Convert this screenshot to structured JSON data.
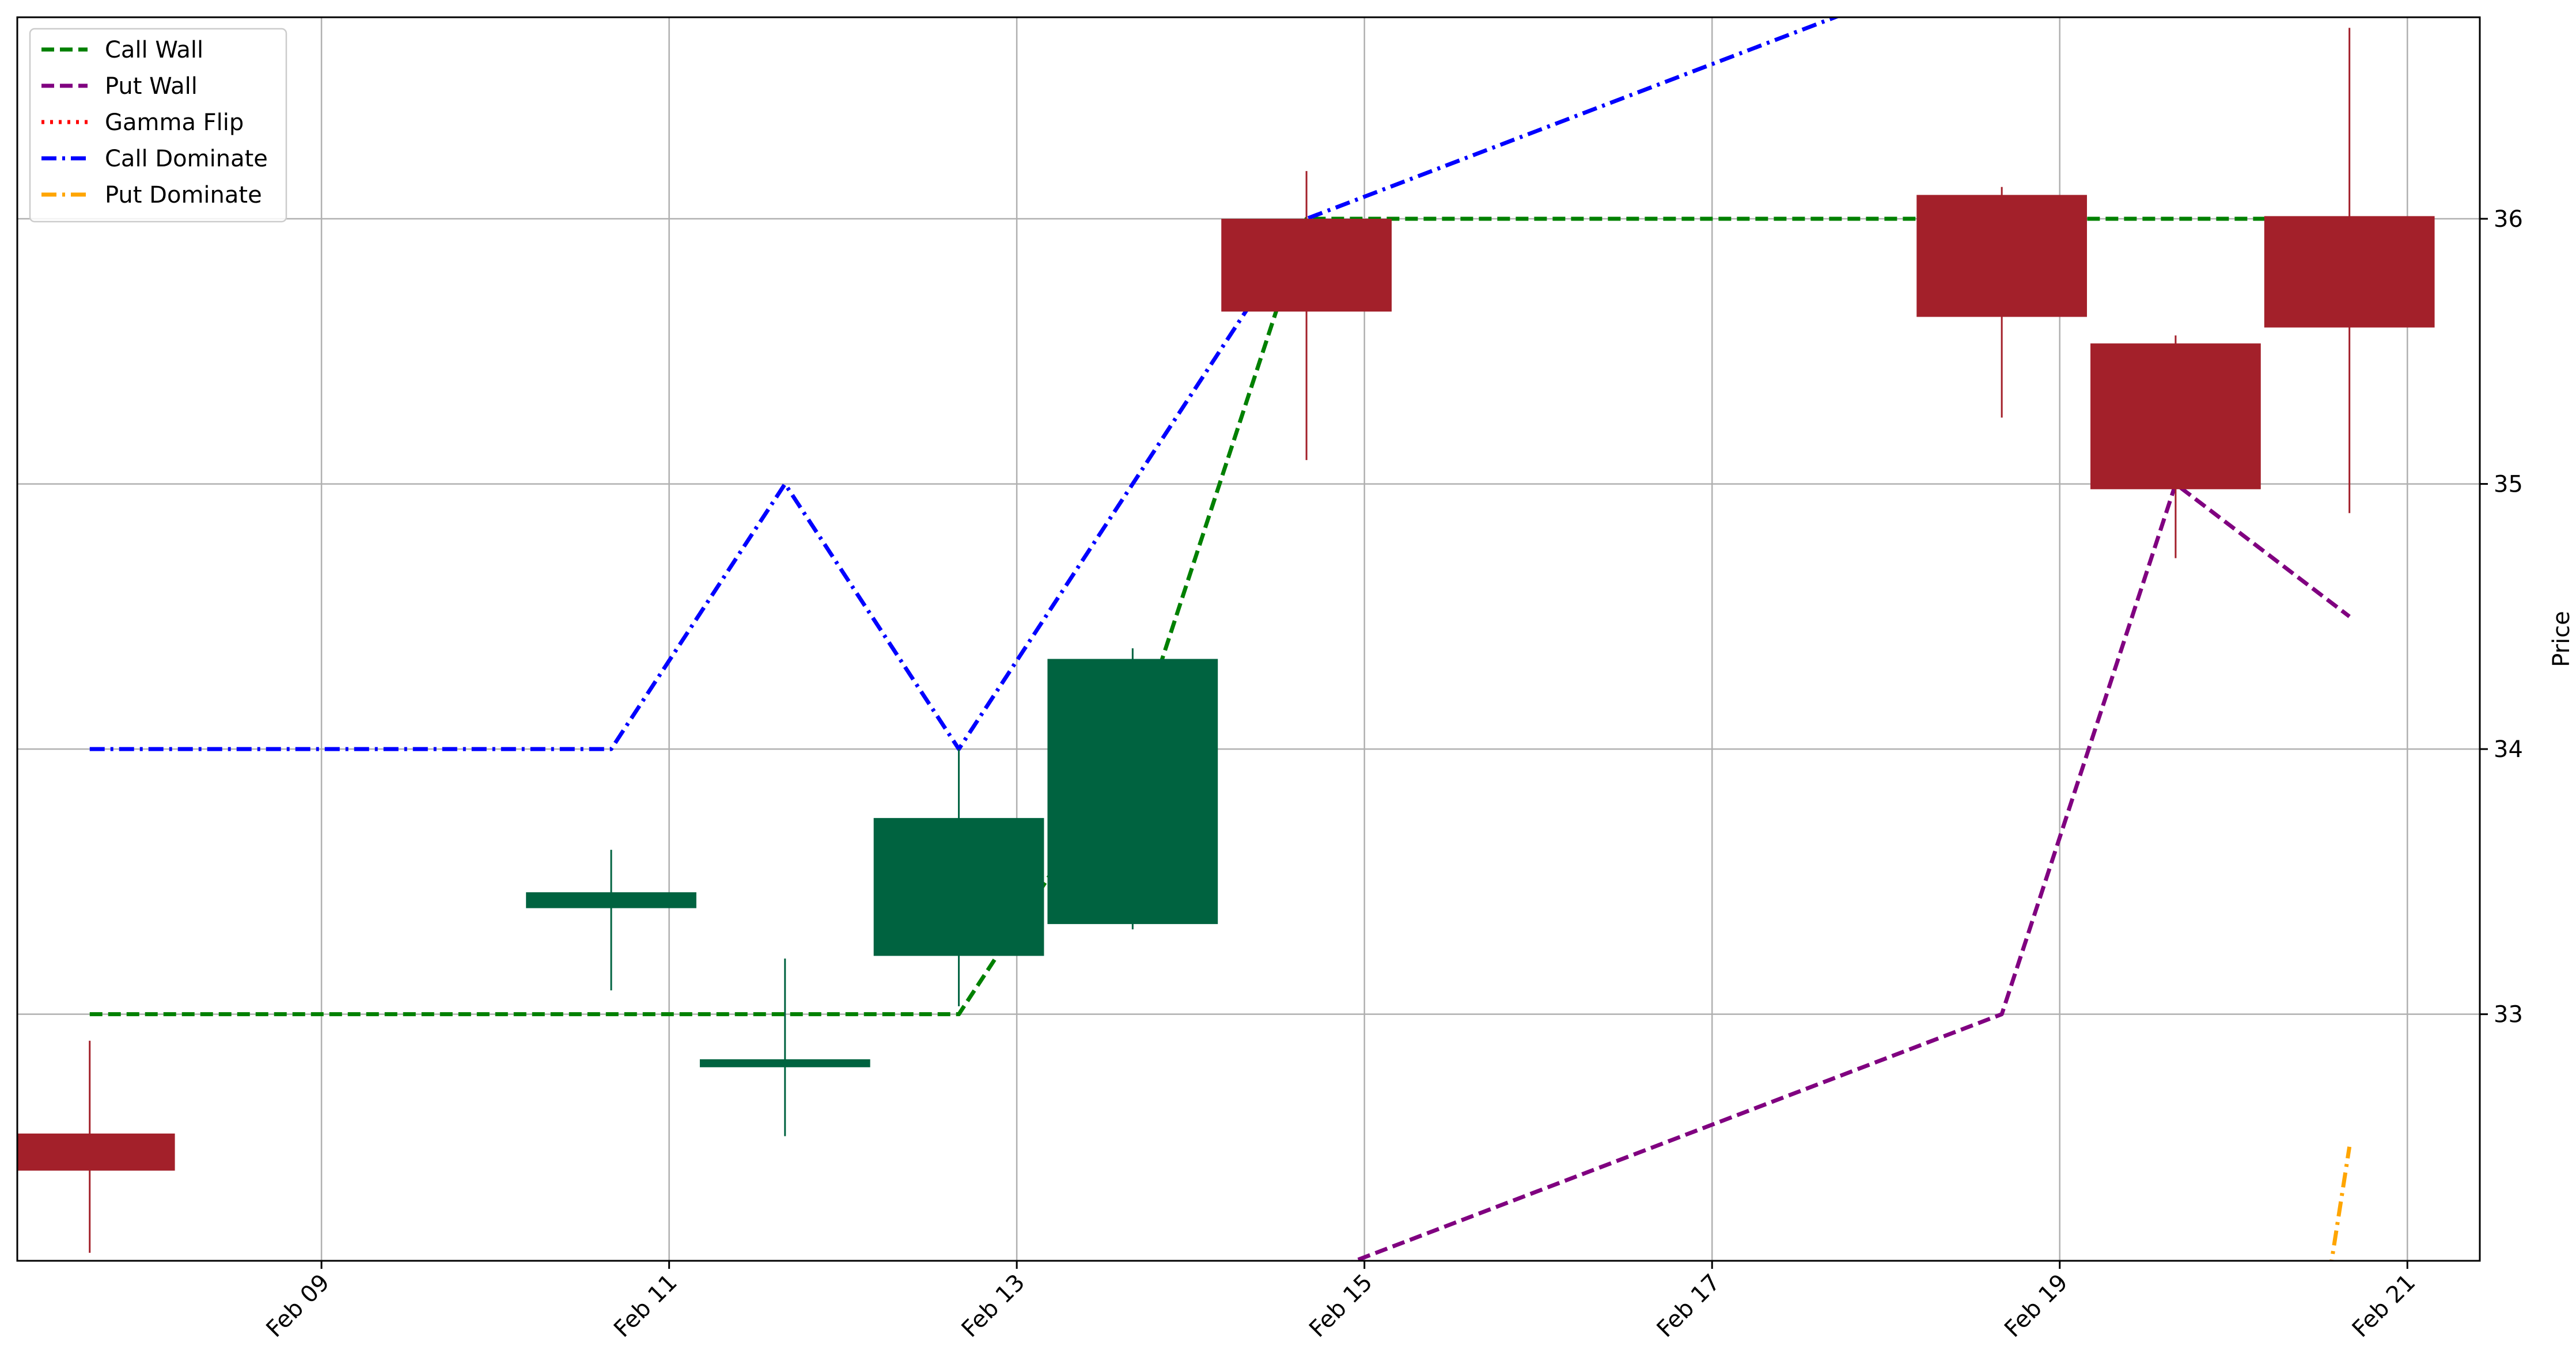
{
  "chart_data": {
    "type": "candlestick",
    "title": "",
    "xlabel": "",
    "ylabel": "Price",
    "x_ticks": [
      "2024-02-09",
      "2024-02-11",
      "2024-02-13",
      "2024-02-15",
      "2024-02-17",
      "2024-02-19",
      "2024-02-21"
    ],
    "x_tick_labels": [
      "Feb 09",
      "Feb 11",
      "Feb 13",
      "Feb 15",
      "Feb 17",
      "Feb 19",
      "Feb 21"
    ],
    "y_ticks": [
      33,
      34,
      35,
      36
    ],
    "xlim": [
      "2024-02-07 06:00",
      "2024-02-21 10:00"
    ],
    "ylim": [
      32.07,
      36.76
    ],
    "grid": true,
    "legend_position": "top-left",
    "candles": [
      {
        "date": "2024-02-07 16:00",
        "open": 32.55,
        "high": 32.9,
        "low": 32.1,
        "close": 32.41
      },
      {
        "date": "2024-02-10 16:00",
        "open": 33.4,
        "high": 33.62,
        "low": 33.09,
        "close": 33.46
      },
      {
        "date": "2024-02-11 16:00",
        "open": 32.8,
        "high": 33.21,
        "low": 32.54,
        "close": 32.83
      },
      {
        "date": "2024-02-12 16:00",
        "open": 33.22,
        "high": 34.0,
        "low": 33.03,
        "close": 33.74
      },
      {
        "date": "2024-02-13 16:00",
        "open": 33.34,
        "high": 34.38,
        "low": 33.32,
        "close": 34.34
      },
      {
        "date": "2024-02-14 16:00",
        "open": 36.0,
        "high": 36.18,
        "low": 35.09,
        "close": 35.65
      },
      {
        "date": "2024-02-18 16:00",
        "open": 36.09,
        "high": 36.12,
        "low": 35.25,
        "close": 35.63
      },
      {
        "date": "2024-02-19 16:00",
        "open": 35.53,
        "high": 35.56,
        "low": 34.72,
        "close": 34.98
      },
      {
        "date": "2024-02-20 16:00",
        "open": 36.01,
        "high": 36.72,
        "low": 34.89,
        "close": 35.59
      }
    ],
    "series": [
      {
        "name": "Call Wall",
        "color": "#008000",
        "style": "dashed",
        "points": [
          [
            "2024-02-07 16:00",
            33
          ],
          [
            "2024-02-12 16:00",
            33
          ],
          [
            "2024-02-13 16:00",
            34
          ],
          [
            "2024-02-14 16:00",
            36
          ],
          [
            "2024-02-20 16:00",
            36
          ]
        ]
      },
      {
        "name": "Put Wall",
        "color": "#800080",
        "style": "dashed",
        "points": [
          [
            "2024-02-14 16:00",
            32.0
          ],
          [
            "2024-02-18 16:00",
            33
          ],
          [
            "2024-02-19 16:00",
            35
          ],
          [
            "2024-02-20 16:00",
            34.5
          ]
        ]
      },
      {
        "name": "Gamma Flip",
        "color": "#ff0000",
        "style": "dotted",
        "points": []
      },
      {
        "name": "Call Dominate",
        "color": "#0000ff",
        "style": "dashdot",
        "points": [
          [
            "2024-02-07 16:00",
            34
          ],
          [
            "2024-02-10 16:00",
            34
          ],
          [
            "2024-02-11 16:00",
            35
          ],
          [
            "2024-02-12 16:00",
            34
          ],
          [
            "2024-02-14 16:00",
            36
          ],
          [
            "2024-02-18 16:00",
            37.0
          ]
        ]
      },
      {
        "name": "Put Dominate",
        "color": "#ffa500",
        "style": "dashdot",
        "points": [
          [
            "2024-02-20 12:00",
            31.8
          ],
          [
            "2024-02-20 16:00",
            32.5
          ]
        ]
      }
    ],
    "colors": {
      "up": "#006340",
      "down": "#a3202a",
      "grid": "#b0b0b0",
      "axis": "#000000"
    }
  }
}
